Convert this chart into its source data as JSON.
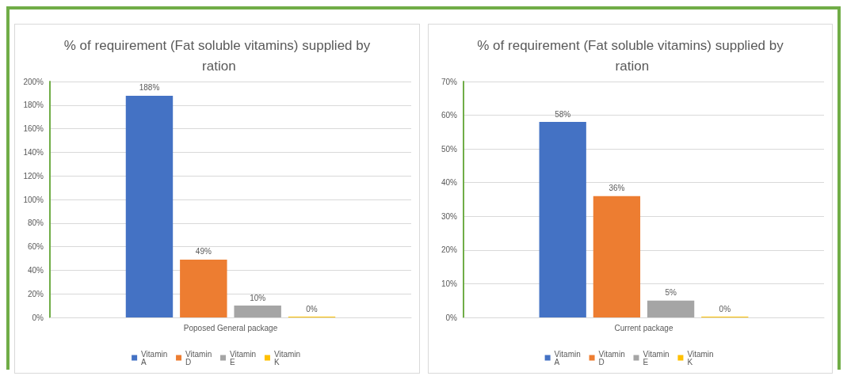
{
  "chart_data": [
    {
      "type": "bar",
      "title": "% of requirement (Fat soluble vitamins) supplied by ration",
      "categories": [
        "Poposed General package"
      ],
      "series": [
        {
          "name": "Vitamin A",
          "color": "#4472c4",
          "values": [
            188
          ],
          "value_labels": [
            "188%"
          ]
        },
        {
          "name": "Vitamin D",
          "color": "#ed7d31",
          "values": [
            49
          ],
          "value_labels": [
            "49%"
          ]
        },
        {
          "name": "Vitamin E",
          "color": "#a5a5a5",
          "values": [
            10
          ],
          "value_labels": [
            "10%"
          ]
        },
        {
          "name": "Vitamin K",
          "color": "#ffc000",
          "values": [
            0
          ],
          "value_labels": [
            "0%"
          ]
        }
      ],
      "ylim": [
        0,
        200
      ],
      "yticks": [
        {
          "value": 0,
          "label": "0%"
        },
        {
          "value": 20,
          "label": "20%"
        },
        {
          "value": 40,
          "label": "40%"
        },
        {
          "value": 60,
          "label": "60%"
        },
        {
          "value": 80,
          "label": "80%"
        },
        {
          "value": 100,
          "label": "100%"
        },
        {
          "value": 120,
          "label": "120%"
        },
        {
          "value": 140,
          "label": "140%"
        },
        {
          "value": 160,
          "label": "160%"
        },
        {
          "value": 180,
          "label": "180%"
        },
        {
          "value": 200,
          "label": "200%"
        }
      ],
      "grid": "y",
      "legend": "bottom"
    },
    {
      "type": "bar",
      "title": "% of requirement (Fat soluble vitamins) supplied by ration",
      "categories": [
        "Current package"
      ],
      "series": [
        {
          "name": "Vitamin A",
          "color": "#4472c4",
          "values": [
            58
          ],
          "value_labels": [
            "58%"
          ]
        },
        {
          "name": "Vitamin D",
          "color": "#ed7d31",
          "values": [
            36
          ],
          "value_labels": [
            "36%"
          ]
        },
        {
          "name": "Vitamin E",
          "color": "#a5a5a5",
          "values": [
            5
          ],
          "value_labels": [
            "5%"
          ]
        },
        {
          "name": "Vitamin K",
          "color": "#ffc000",
          "values": [
            0
          ],
          "value_labels": [
            "0%"
          ]
        }
      ],
      "ylim": [
        0,
        70
      ],
      "yticks": [
        {
          "value": 0,
          "label": "0%"
        },
        {
          "value": 10,
          "label": "10%"
        },
        {
          "value": 20,
          "label": "20%"
        },
        {
          "value": 30,
          "label": "30%"
        },
        {
          "value": 40,
          "label": "40%"
        },
        {
          "value": 50,
          "label": "50%"
        },
        {
          "value": 60,
          "label": "60%"
        },
        {
          "value": 70,
          "label": "70%"
        }
      ],
      "grid": "y",
      "legend": "bottom"
    }
  ]
}
